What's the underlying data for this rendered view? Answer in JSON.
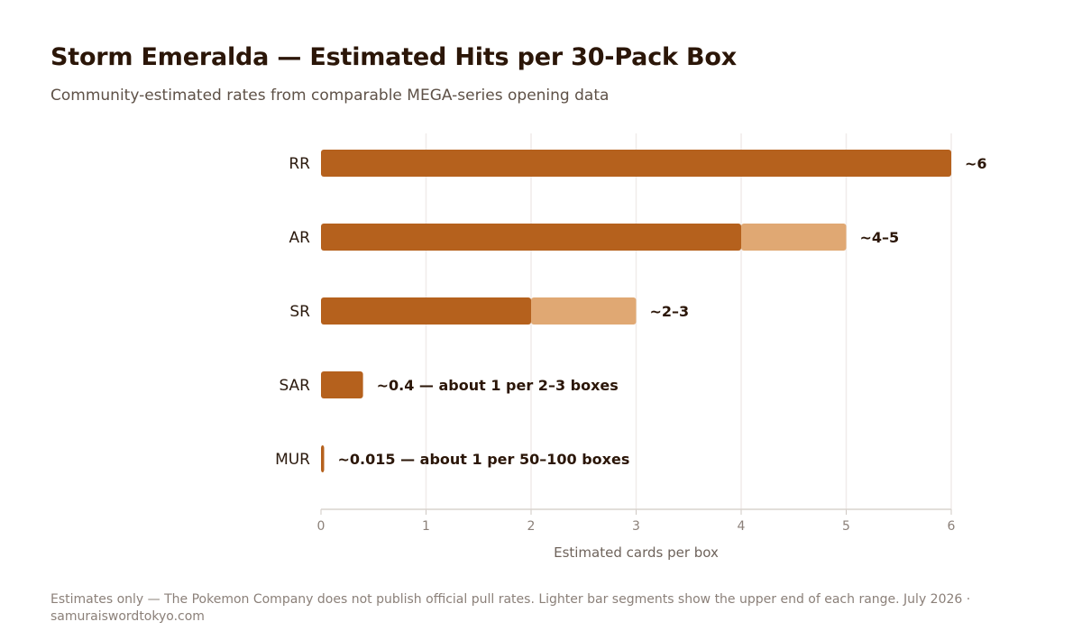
{
  "chart_data": {
    "type": "bar",
    "orientation": "horizontal",
    "stacked": true,
    "title": "Storm Emeralda — Estimated Hits per 30-Pack Box",
    "subtitle": "Community-estimated rates from comparable MEGA-series opening data",
    "xlabel": "Estimated cards per box",
    "ylabel": "",
    "xlim": [
      0,
      6
    ],
    "x_ticks": [
      "0",
      "1",
      "2",
      "3",
      "4",
      "5",
      "6"
    ],
    "grid": true,
    "categories": [
      "RR",
      "AR",
      "SR",
      "SAR",
      "MUR"
    ],
    "series": [
      {
        "values": [
          6,
          4,
          2,
          0.4,
          0.015
        ],
        "color": "#b5611d"
      },
      {
        "values": [
          0,
          1,
          1,
          0,
          0
        ],
        "color": "#e0a873"
      }
    ],
    "data_labels": [
      "~6",
      "~4–5",
      "~2–3",
      "~0.4 — about 1 per 2–3 boxes",
      "~0.015 — about 1 per 50–100 boxes"
    ],
    "footnote": "Estimates only — The Pokemon Company does not publish official pull rates. Lighter bar segments show the upper end of each range. July 2026 · samuraiswordtokyo.com"
  }
}
